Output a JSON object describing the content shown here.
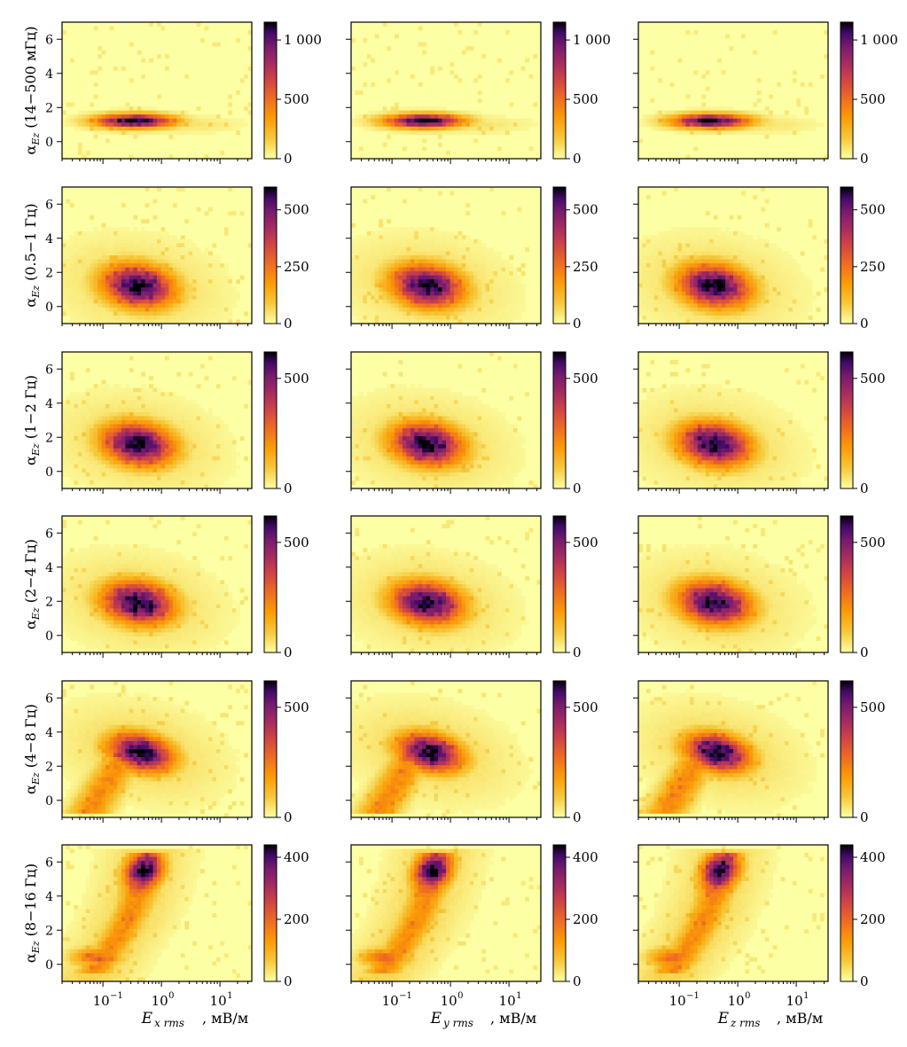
{
  "figure": {
    "x_labels": [
      "E",
      "E",
      "E"
    ],
    "x_label_subscripts": [
      "x rms",
      "y rms",
      "z rms"
    ],
    "x_label_unit": ", мВ/м",
    "x_tick_labels": [
      "10",
      "10",
      "10"
    ],
    "x_tick_exponents": [
      "−1",
      "0",
      "1"
    ],
    "y_label_symbol": "α",
    "y_label_subscript": "Ez",
    "y_tick_labels": [
      "0",
      "2",
      "4",
      "6"
    ]
  },
  "chart_data": {
    "type": "heatmap",
    "description_rows": [
      "14−500 мГц",
      "0.5−1 Гц",
      "1−2 Гц",
      "2−4 Гц",
      "4−8 Гц",
      "8−16 Гц"
    ],
    "columns": [
      "E_x rms",
      "E_y rms",
      "E_z rms"
    ],
    "xscale": "log",
    "xlim": [
      0.02,
      35
    ],
    "ylim": [
      -1,
      7
    ],
    "xlabel_unit": "мВ/м",
    "ylabel": "α_Ez",
    "colormap": "inferno_r",
    "rows": [
      {
        "band": "14−500 мГц",
        "cbar_ticks": [
          "0",
          "500",
          "1 000"
        ],
        "cbar_values": [
          0,
          500,
          1000
        ],
        "cbar_max": 1150,
        "peak_x": 0.35,
        "peak_y": 1.2,
        "peak_count": 1150
      },
      {
        "band": "0.5−1 Гц",
        "cbar_ticks": [
          "0",
          "250",
          "500"
        ],
        "cbar_values": [
          0,
          250,
          500
        ],
        "cbar_max": 600,
        "peak_x": 0.4,
        "peak_y": 1.2,
        "peak_count": 600
      },
      {
        "band": "1−2 Гц",
        "cbar_ticks": [
          "0",
          "500"
        ],
        "cbar_values": [
          0,
          500
        ],
        "cbar_max": 620,
        "peak_x": 0.4,
        "peak_y": 1.6,
        "peak_count": 620
      },
      {
        "band": "2−4 Гц",
        "cbar_ticks": [
          "0",
          "500"
        ],
        "cbar_values": [
          0,
          500
        ],
        "cbar_max": 620,
        "peak_x": 0.4,
        "peak_y": 1.9,
        "peak_count": 620
      },
      {
        "band": "4−8 Гц",
        "cbar_ticks": [
          "0",
          "500"
        ],
        "cbar_values": [
          0,
          500
        ],
        "cbar_max": 620,
        "peak_x": 0.45,
        "peak_y": 2.8,
        "peak_count": 620
      },
      {
        "band": "8−16 Гц",
        "cbar_ticks": [
          "0",
          "200",
          "400"
        ],
        "cbar_values": [
          0,
          200,
          400
        ],
        "cbar_max": 440,
        "peak_x": 0.5,
        "peak_y": 5.5,
        "peak_count": 440
      }
    ]
  }
}
